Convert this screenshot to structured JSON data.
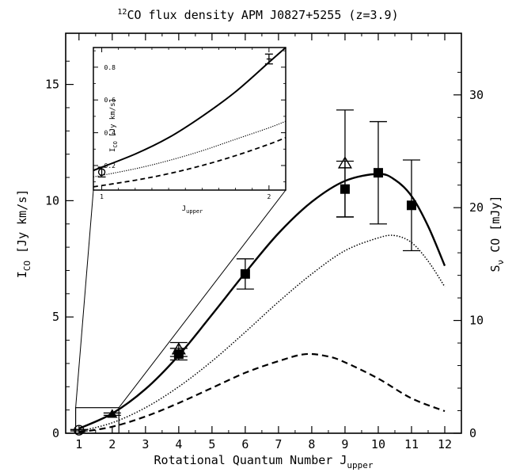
{
  "title": {
    "sup": "12",
    "main": "CO flux density APM J0827+5255 (z=3.9)"
  },
  "xlabel": {
    "main": "Rotational Quantum Number J",
    "sub": "upper"
  },
  "ylabel_left": {
    "main": "I",
    "sub": "CO",
    "rest": " [Jy km/s]"
  },
  "ylabel_right": {
    "main": "S",
    "sub": "ν",
    "rest": " CO [mJy]"
  },
  "inset": {
    "ylabel": {
      "main": "I",
      "sub": "CO",
      "rest": " [Jy km/s]"
    },
    "xlabel": {
      "main": "J",
      "sub": "upper"
    }
  },
  "chart_data": {
    "type": "scatter",
    "title": "12CO flux density APM J0827+5255 (z=3.9)",
    "xlabel": "Rotational Quantum Number J_upper",
    "ylabel": "I_CO [Jy km/s]",
    "ylabel_right": "S_nu CO [mJy]",
    "xlim": [
      0.6,
      12.5
    ],
    "ylim": [
      0,
      17.2
    ],
    "xticks": [
      1,
      2,
      3,
      4,
      5,
      6,
      7,
      8,
      9,
      10,
      11,
      12
    ],
    "yticks": [
      0,
      5,
      10,
      15
    ],
    "yticks_right": [
      0,
      10,
      20,
      30
    ],
    "series": [
      {
        "marker": "square",
        "points": [
          {
            "x": 4,
            "y": 3.4,
            "err": 0.25
          },
          {
            "x": 6,
            "y": 6.85,
            "err": 0.65
          },
          {
            "x": 9,
            "y": 10.5,
            "err": 1.2
          },
          {
            "x": 10,
            "y": 11.2,
            "err": 2.2
          },
          {
            "x": 11,
            "y": 9.8,
            "err": 1.95
          }
        ]
      },
      {
        "marker": "open-triangle",
        "points": [
          {
            "x": 4,
            "y": 3.6,
            "err": 0.3
          },
          {
            "x": 9,
            "y": 11.6,
            "err": 2.3
          }
        ]
      },
      {
        "marker": "filled-triangle",
        "points": [
          {
            "x": 2,
            "y": 0.82,
            "err": 0.05
          }
        ]
      },
      {
        "marker": "open-circle",
        "points": [
          {
            "x": 1,
            "y": 0.13,
            "err": 0.03
          }
        ]
      }
    ],
    "models": [
      {
        "style": "solid",
        "points": [
          [
            1,
            0.2
          ],
          [
            2,
            0.85
          ],
          [
            3,
            1.9
          ],
          [
            4,
            3.35
          ],
          [
            5,
            5.1
          ],
          [
            6,
            6.9
          ],
          [
            7,
            8.6
          ],
          [
            8,
            9.95
          ],
          [
            9,
            10.85
          ],
          [
            10,
            11.15
          ],
          [
            10.5,
            10.9
          ],
          [
            11,
            10.2
          ],
          [
            11.5,
            8.9
          ],
          [
            12,
            7.2
          ]
        ]
      },
      {
        "style": "dotted",
        "points": [
          [
            1,
            0.08
          ],
          [
            2,
            0.45
          ],
          [
            3,
            1.1
          ],
          [
            4,
            2.0
          ],
          [
            5,
            3.1
          ],
          [
            6,
            4.35
          ],
          [
            7,
            5.65
          ],
          [
            8,
            6.85
          ],
          [
            9,
            7.85
          ],
          [
            10,
            8.4
          ],
          [
            10.5,
            8.5
          ],
          [
            11,
            8.2
          ],
          [
            11.5,
            7.4
          ],
          [
            12,
            6.3
          ]
        ]
      },
      {
        "style": "dashed",
        "points": [
          [
            1,
            0.04
          ],
          [
            2,
            0.28
          ],
          [
            3,
            0.72
          ],
          [
            4,
            1.3
          ],
          [
            5,
            1.95
          ],
          [
            6,
            2.6
          ],
          [
            7,
            3.1
          ],
          [
            7.8,
            3.4
          ],
          [
            8.5,
            3.3
          ],
          [
            9,
            3.05
          ],
          [
            10,
            2.35
          ],
          [
            11,
            1.5
          ],
          [
            12,
            0.95
          ]
        ]
      }
    ],
    "inset": {
      "xlim": [
        0.95,
        2.1
      ],
      "ylim": [
        0.05,
        0.92
      ],
      "xticks": [
        1,
        2
      ],
      "yticks": [
        0.2,
        0.4,
        0.6,
        0.8
      ],
      "zoom_box": {
        "x": [
          0.9,
          2.2
        ],
        "y": [
          0,
          1.1
        ]
      },
      "points": [
        {
          "x": 1,
          "y": 0.16,
          "err": 0.03,
          "marker": "open-circle"
        },
        {
          "x": 2,
          "y": 0.85,
          "err": 0.03,
          "marker": "square"
        }
      ],
      "models": [
        {
          "style": "solid",
          "points": [
            [
              0.95,
              0.17
            ],
            [
              1.2,
              0.27
            ],
            [
              1.4,
              0.37
            ],
            [
              1.6,
              0.5
            ],
            [
              1.8,
              0.65
            ],
            [
              2.0,
              0.83
            ],
            [
              2.1,
              0.92
            ]
          ]
        },
        {
          "style": "dotted",
          "points": [
            [
              0.95,
              0.13
            ],
            [
              1.2,
              0.18
            ],
            [
              1.4,
              0.23
            ],
            [
              1.6,
              0.29
            ],
            [
              1.8,
              0.36
            ],
            [
              2.0,
              0.43
            ],
            [
              2.1,
              0.47
            ]
          ]
        },
        {
          "style": "dashed",
          "points": [
            [
              0.95,
              0.07
            ],
            [
              1.2,
              0.11
            ],
            [
              1.4,
              0.15
            ],
            [
              1.6,
              0.2
            ],
            [
              1.8,
              0.26
            ],
            [
              2.0,
              0.33
            ],
            [
              2.1,
              0.37
            ]
          ]
        }
      ]
    }
  }
}
